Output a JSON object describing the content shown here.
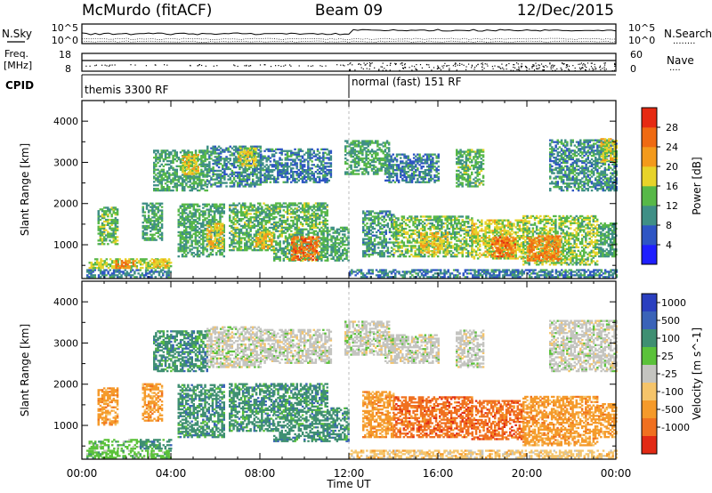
{
  "header": {
    "station": "McMurdo (fitACF)",
    "beam": "Beam 09",
    "date": "12/Dec/2015"
  },
  "top_panel": {
    "left_label": "N.Sky",
    "right_label": "N.Search",
    "right_line_sample": "········",
    "ticks_left": [
      "10^5",
      "10^0"
    ],
    "ticks_right": [
      "10^5",
      "10^0"
    ]
  },
  "freq_panel": {
    "left_label_line1": "Freq.",
    "left_label_line2": "[MHz]",
    "right_label": "Nave",
    "right_line_sample": "····",
    "ticks_left": [
      "18",
      "8"
    ],
    "ticks_right": [
      "60",
      "0"
    ]
  },
  "cpid_panel": {
    "label": "CPID",
    "modes": [
      {
        "label": "themis 3300 RF",
        "start_hour": 0,
        "end_hour": 12
      },
      {
        "label": "normal (fast) 151 RF",
        "start_hour": 12,
        "end_hour": 24
      }
    ]
  },
  "axes": {
    "xlabel": "Time UT",
    "x_tick_labels": [
      "00:00",
      "04:00",
      "08:00",
      "12:00",
      "16:00",
      "20:00",
      "00:00"
    ],
    "ylabel": "Slant Range [km]",
    "y_tick_labels": [
      "1000",
      "2000",
      "3000",
      "4000"
    ]
  },
  "chart_data": [
    {
      "type": "heatmap",
      "panel": "power",
      "x_range_hours": [
        0,
        24
      ],
      "y_range_km": [
        180,
        4500
      ],
      "y_ticks": [
        1000,
        2000,
        3000,
        4000
      ],
      "colorbar": {
        "label": "Power [dB]",
        "ticks": [
          "4",
          "8",
          "12",
          "16",
          "20",
          "24",
          "28"
        ],
        "range": [
          0,
          30
        ],
        "colors": [
          "#1f1fff",
          "#2e55c4",
          "#3f8f86",
          "#57b848",
          "#e7d32a",
          "#f39a1c",
          "#ef6a12",
          "#e62a12"
        ]
      },
      "regions": [
        {
          "t": 0.2,
          "t2": 4.0,
          "r1": 200,
          "r2": 380,
          "val": 9
        },
        {
          "t": 12.0,
          "t2": 24.0,
          "r1": 200,
          "r2": 380,
          "val": 9
        },
        {
          "t": 0.3,
          "t2": 4.0,
          "r1": 420,
          "r2": 650,
          "val": 16
        },
        {
          "t": 1.5,
          "t2": 2.4,
          "r1": 420,
          "r2": 600,
          "val": 24
        },
        {
          "t": 3.2,
          "t2": 3.9,
          "r1": 440,
          "r2": 640,
          "val": 20
        },
        {
          "t": 0.7,
          "t2": 1.6,
          "r1": 1000,
          "r2": 1900,
          "val": 14
        },
        {
          "t": 2.7,
          "t2": 3.6,
          "r1": 1100,
          "r2": 2000,
          "val": 12
        },
        {
          "t": 4.3,
          "t2": 6.4,
          "r1": 700,
          "r2": 2000,
          "val": 12
        },
        {
          "t": 5.6,
          "t2": 6.3,
          "r1": 900,
          "r2": 1500,
          "val": 19
        },
        {
          "t": 6.6,
          "t2": 8.6,
          "r1": 850,
          "r2": 2000,
          "val": 13
        },
        {
          "t": 7.8,
          "t2": 8.6,
          "r1": 900,
          "r2": 1300,
          "val": 19
        },
        {
          "t": 8.6,
          "t2": 11.0,
          "r1": 600,
          "r2": 2000,
          "val": 13
        },
        {
          "t": 9.4,
          "t2": 10.6,
          "r1": 620,
          "r2": 1200,
          "val": 26
        },
        {
          "t": 11.0,
          "t2": 12.0,
          "r1": 600,
          "r2": 1400,
          "val": 12
        },
        {
          "t": 12.6,
          "t2": 14.0,
          "r1": 700,
          "r2": 1800,
          "val": 11
        },
        {
          "t": 14.0,
          "t2": 17.5,
          "r1": 700,
          "r2": 1700,
          "val": 14
        },
        {
          "t": 15.2,
          "t2": 16.4,
          "r1": 800,
          "r2": 1300,
          "val": 19
        },
        {
          "t": 17.5,
          "t2": 19.8,
          "r1": 650,
          "r2": 1600,
          "val": 17
        },
        {
          "t": 18.4,
          "t2": 19.5,
          "r1": 700,
          "r2": 1200,
          "val": 25
        },
        {
          "t": 19.8,
          "t2": 23.2,
          "r1": 500,
          "r2": 1700,
          "val": 15
        },
        {
          "t": 20.0,
          "t2": 21.5,
          "r1": 600,
          "r2": 1200,
          "val": 24
        },
        {
          "t": 23.2,
          "t2": 24.0,
          "r1": 700,
          "r2": 1500,
          "val": 12
        },
        {
          "t": 3.2,
          "t2": 5.6,
          "r1": 2300,
          "r2": 3300,
          "val": 12
        },
        {
          "t": 4.5,
          "t2": 5.2,
          "r1": 2700,
          "r2": 3200,
          "val": 19
        },
        {
          "t": 5.6,
          "t2": 8.0,
          "r1": 2400,
          "r2": 3400,
          "val": 10
        },
        {
          "t": 7.0,
          "t2": 7.8,
          "r1": 2900,
          "r2": 3350,
          "val": 17
        },
        {
          "t": 8.0,
          "t2": 11.2,
          "r1": 2500,
          "r2": 3300,
          "val": 9
        },
        {
          "t": 11.8,
          "t2": 13.8,
          "r1": 2700,
          "r2": 3500,
          "val": 12
        },
        {
          "t": 13.6,
          "t2": 16.0,
          "r1": 2500,
          "r2": 3200,
          "val": 9
        },
        {
          "t": 16.8,
          "t2": 18.0,
          "r1": 2400,
          "r2": 3300,
          "val": 13
        },
        {
          "t": 21.0,
          "t2": 24.0,
          "r1": 2300,
          "r2": 3550,
          "val": 10
        },
        {
          "t": 23.3,
          "t2": 24.0,
          "r1": 3000,
          "r2": 3550,
          "val": 17
        }
      ]
    },
    {
      "type": "heatmap",
      "panel": "velocity",
      "x_range_hours": [
        0,
        24
      ],
      "y_range_km": [
        180,
        4500
      ],
      "y_ticks": [
        1000,
        2000,
        3000,
        4000
      ],
      "colorbar": {
        "label": "Velocity [m s^-1]",
        "ticks": [
          "1000",
          "500",
          "100",
          "25",
          "-25",
          "-100",
          "-500",
          "-1000"
        ],
        "colors": [
          "#2a3fbf",
          "#3a63b8",
          "#3f8f72",
          "#5bc23a",
          "#c4c4c0",
          "#f5c46a",
          "#f59a2a",
          "#f07020",
          "#e22a15"
        ]
      },
      "regions": [
        {
          "t": 0.2,
          "t2": 4.0,
          "r1": 200,
          "r2": 380,
          "val": 3
        },
        {
          "t": 12.0,
          "t2": 24.0,
          "r1": 200,
          "r2": 380,
          "val": 5
        },
        {
          "t": 0.3,
          "t2": 2.6,
          "r1": 420,
          "r2": 650,
          "val": 3
        },
        {
          "t": 2.6,
          "t2": 4.0,
          "r1": 420,
          "r2": 650,
          "val": 2
        },
        {
          "t": 0.7,
          "t2": 1.6,
          "r1": 1000,
          "r2": 1900,
          "val": 6
        },
        {
          "t": 2.7,
          "t2": 3.6,
          "r1": 1100,
          "r2": 2000,
          "val": 6
        },
        {
          "t": 4.3,
          "t2": 6.4,
          "r1": 700,
          "r2": 2000,
          "val": 2
        },
        {
          "t": 6.6,
          "t2": 8.6,
          "r1": 850,
          "r2": 2000,
          "val": 2
        },
        {
          "t": 8.6,
          "t2": 11.0,
          "r1": 600,
          "r2": 2000,
          "val": 2
        },
        {
          "t": 11.0,
          "t2": 12.0,
          "r1": 600,
          "r2": 1400,
          "val": 2
        },
        {
          "t": 12.6,
          "t2": 14.0,
          "r1": 700,
          "r2": 1800,
          "val": 6
        },
        {
          "t": 14.0,
          "t2": 17.5,
          "r1": 700,
          "r2": 1700,
          "val": 7
        },
        {
          "t": 17.5,
          "t2": 19.8,
          "r1": 650,
          "r2": 1600,
          "val": 7
        },
        {
          "t": 19.8,
          "t2": 23.2,
          "r1": 500,
          "r2": 1700,
          "val": 6
        },
        {
          "t": 23.2,
          "t2": 24.0,
          "r1": 700,
          "r2": 1500,
          "val": 6
        },
        {
          "t": 3.2,
          "t2": 5.6,
          "r1": 2300,
          "r2": 3300,
          "val": 2
        },
        {
          "t": 5.6,
          "t2": 8.0,
          "r1": 2400,
          "r2": 3400,
          "val": 4
        },
        {
          "t": 8.0,
          "t2": 11.2,
          "r1": 2500,
          "r2": 3300,
          "val": 4
        },
        {
          "t": 11.8,
          "t2": 13.8,
          "r1": 2700,
          "r2": 3500,
          "val": 4
        },
        {
          "t": 13.6,
          "t2": 16.0,
          "r1": 2500,
          "r2": 3200,
          "val": 4
        },
        {
          "t": 16.8,
          "t2": 18.0,
          "r1": 2400,
          "r2": 3300,
          "val": 4
        },
        {
          "t": 21.0,
          "t2": 24.0,
          "r1": 2300,
          "r2": 3550,
          "val": 4
        }
      ]
    }
  ]
}
